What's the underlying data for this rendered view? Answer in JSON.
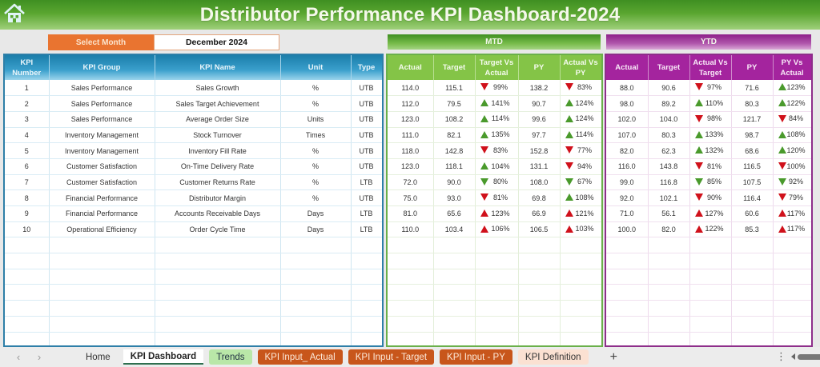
{
  "header": {
    "title": "Distributor Performance KPI Dashboard-2024",
    "home_icon": "home-icon"
  },
  "month_selector": {
    "label": "Select Month",
    "value": "December 2024"
  },
  "sections": {
    "mtd": "MTD",
    "ytd": "YTD"
  },
  "colors": {
    "title_green": "#4f9e2a",
    "month_orange": "#e97430",
    "left_header_blue": "#2a8fbd",
    "mtd_green": "#84c447",
    "ytd_purple": "#a4249e",
    "up_green": "#4a9a2c",
    "alert_red": "#d0111b",
    "tab_orange": "#c8561b",
    "tab_green": "#b9e7a8",
    "tab_peach": "#fbe1d2"
  },
  "kpi_table": {
    "headers": [
      "KPI Number",
      "KPI Group",
      "KPI Name",
      "Unit",
      "Type"
    ],
    "rows": [
      [
        "1",
        "Sales Performance",
        "Sales Growth",
        "%",
        "UTB"
      ],
      [
        "2",
        "Sales Performance",
        "Sales Target Achievement",
        "%",
        "UTB"
      ],
      [
        "3",
        "Sales Performance",
        "Average Order Size",
        "Units",
        "UTB"
      ],
      [
        "4",
        "Inventory Management",
        "Stock Turnover",
        "Times",
        "UTB"
      ],
      [
        "5",
        "Inventory Management",
        "Inventory Fill Rate",
        "%",
        "UTB"
      ],
      [
        "6",
        "Customer Satisfaction",
        "On-Time Delivery Rate",
        "%",
        "UTB"
      ],
      [
        "7",
        "Customer Satisfaction",
        "Customer Returns Rate",
        "%",
        "LTB"
      ],
      [
        "8",
        "Financial Performance",
        "Distributor Margin",
        "%",
        "UTB"
      ],
      [
        "9",
        "Financial Performance",
        "Accounts Receivable Days",
        "Days",
        "LTB"
      ],
      [
        "10",
        "Operational Efficiency",
        "Order Cycle Time",
        "Days",
        "LTB"
      ]
    ]
  },
  "mtd_table": {
    "headers": [
      "Actual",
      "Target",
      "Target Vs Actual",
      "PY",
      "Actual Vs PY"
    ],
    "rows": [
      {
        "actual": "114.0",
        "target": "115.1",
        "tva": "99%",
        "tva_dir": "down",
        "tva_color": "red",
        "py": "138.2",
        "avp": "83%",
        "avp_dir": "down",
        "avp_color": "red"
      },
      {
        "actual": "112.0",
        "target": "79.5",
        "tva": "141%",
        "tva_dir": "up",
        "tva_color": "green",
        "py": "90.7",
        "avp": "124%",
        "avp_dir": "up",
        "avp_color": "green"
      },
      {
        "actual": "123.0",
        "target": "108.2",
        "tva": "114%",
        "tva_dir": "up",
        "tva_color": "green",
        "py": "99.6",
        "avp": "124%",
        "avp_dir": "up",
        "avp_color": "green"
      },
      {
        "actual": "111.0",
        "target": "82.1",
        "tva": "135%",
        "tva_dir": "up",
        "tva_color": "green",
        "py": "97.7",
        "avp": "114%",
        "avp_dir": "up",
        "avp_color": "green"
      },
      {
        "actual": "118.0",
        "target": "142.8",
        "tva": "83%",
        "tva_dir": "down",
        "tva_color": "red",
        "py": "152.8",
        "avp": "77%",
        "avp_dir": "down",
        "avp_color": "red"
      },
      {
        "actual": "123.0",
        "target": "118.1",
        "tva": "104%",
        "tva_dir": "up",
        "tva_color": "green",
        "py": "131.1",
        "avp": "94%",
        "avp_dir": "down",
        "avp_color": "red"
      },
      {
        "actual": "72.0",
        "target": "90.0",
        "tva": "80%",
        "tva_dir": "down",
        "tva_color": "green",
        "py": "108.0",
        "avp": "67%",
        "avp_dir": "down",
        "avp_color": "green"
      },
      {
        "actual": "75.0",
        "target": "93.0",
        "tva": "81%",
        "tva_dir": "down",
        "tva_color": "red",
        "py": "69.8",
        "avp": "108%",
        "avp_dir": "up",
        "avp_color": "green"
      },
      {
        "actual": "81.0",
        "target": "65.6",
        "tva": "123%",
        "tva_dir": "up",
        "tva_color": "red",
        "py": "66.9",
        "avp": "121%",
        "avp_dir": "up",
        "avp_color": "red"
      },
      {
        "actual": "110.0",
        "target": "103.4",
        "tva": "106%",
        "tva_dir": "up",
        "tva_color": "red",
        "py": "106.5",
        "avp": "103%",
        "avp_dir": "up",
        "avp_color": "red"
      }
    ]
  },
  "ytd_table": {
    "headers": [
      "Actual",
      "Target",
      "Actual Vs Target",
      "PY",
      "PY Vs Actual"
    ],
    "rows": [
      {
        "actual": "88.0",
        "target": "90.6",
        "tva": "97%",
        "tva_dir": "down",
        "tva_color": "red",
        "py": "71.6",
        "avp": "123%",
        "avp_dir": "up",
        "avp_color": "green"
      },
      {
        "actual": "98.0",
        "target": "89.2",
        "tva": "110%",
        "tva_dir": "up",
        "tva_color": "green",
        "py": "80.3",
        "avp": "122%",
        "avp_dir": "up",
        "avp_color": "green"
      },
      {
        "actual": "102.0",
        "target": "104.0",
        "tva": "98%",
        "tva_dir": "down",
        "tva_color": "red",
        "py": "121.7",
        "avp": "84%",
        "avp_dir": "down",
        "avp_color": "red"
      },
      {
        "actual": "107.0",
        "target": "80.3",
        "tva": "133%",
        "tva_dir": "up",
        "tva_color": "green",
        "py": "98.7",
        "avp": "108%",
        "avp_dir": "up",
        "avp_color": "green"
      },
      {
        "actual": "82.0",
        "target": "62.3",
        "tva": "132%",
        "tva_dir": "up",
        "tva_color": "green",
        "py": "68.6",
        "avp": "120%",
        "avp_dir": "up",
        "avp_color": "green"
      },
      {
        "actual": "116.0",
        "target": "143.8",
        "tva": "81%",
        "tva_dir": "down",
        "tva_color": "red",
        "py": "116.5",
        "avp": "100%",
        "avp_dir": "down",
        "avp_color": "red"
      },
      {
        "actual": "99.0",
        "target": "116.8",
        "tva": "85%",
        "tva_dir": "down",
        "tva_color": "green",
        "py": "107.5",
        "avp": "92%",
        "avp_dir": "down",
        "avp_color": "green"
      },
      {
        "actual": "92.0",
        "target": "102.1",
        "tva": "90%",
        "tva_dir": "down",
        "tva_color": "red",
        "py": "116.4",
        "avp": "79%",
        "avp_dir": "down",
        "avp_color": "red"
      },
      {
        "actual": "71.0",
        "target": "56.1",
        "tva": "127%",
        "tva_dir": "up",
        "tva_color": "red",
        "py": "60.6",
        "avp": "117%",
        "avp_dir": "up",
        "avp_color": "red"
      },
      {
        "actual": "100.0",
        "target": "82.0",
        "tva": "122%",
        "tva_dir": "up",
        "tva_color": "red",
        "py": "85.3",
        "avp": "117%",
        "avp_dir": "up",
        "avp_color": "red"
      }
    ]
  },
  "sheet_tabs": {
    "prev_icon": "‹",
    "next_icon": "›",
    "items": [
      {
        "label": "Home",
        "style": "home"
      },
      {
        "label": "KPI Dashboard",
        "style": "active"
      },
      {
        "label": "Trends",
        "style": "trends"
      },
      {
        "label": "KPI Input_ Actual",
        "style": "orange"
      },
      {
        "label": "KPI Input - Target",
        "style": "orange"
      },
      {
        "label": "KPI Input - PY",
        "style": "orange"
      },
      {
        "label": "KPI Definition",
        "style": "def"
      }
    ],
    "add_icon": "+",
    "more_icon": "⋮"
  }
}
